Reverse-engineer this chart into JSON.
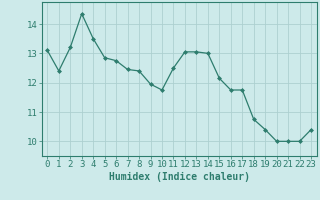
{
  "x": [
    0,
    1,
    2,
    3,
    4,
    5,
    6,
    7,
    8,
    9,
    10,
    11,
    12,
    13,
    14,
    15,
    16,
    17,
    18,
    19,
    20,
    21,
    22,
    23
  ],
  "y": [
    13.1,
    12.4,
    13.2,
    14.35,
    13.5,
    12.85,
    12.75,
    12.45,
    12.4,
    11.95,
    11.75,
    12.5,
    13.05,
    13.05,
    13.0,
    12.15,
    11.75,
    11.75,
    10.75,
    10.4,
    10.0,
    10.0,
    10.0,
    10.4
  ],
  "line_color": "#2e7d6e",
  "marker": "D",
  "marker_size": 2.0,
  "bg_color": "#cdeaea",
  "grid_color": "#add0d0",
  "xlabel": "Humidex (Indice chaleur)",
  "xlabel_fontsize": 7,
  "tick_fontsize": 6.5,
  "ylim": [
    9.5,
    14.75
  ],
  "yticks": [
    10,
    11,
    12,
    13,
    14
  ],
  "xticks": [
    0,
    1,
    2,
    3,
    4,
    5,
    6,
    7,
    8,
    9,
    10,
    11,
    12,
    13,
    14,
    15,
    16,
    17,
    18,
    19,
    20,
    21,
    22,
    23
  ]
}
